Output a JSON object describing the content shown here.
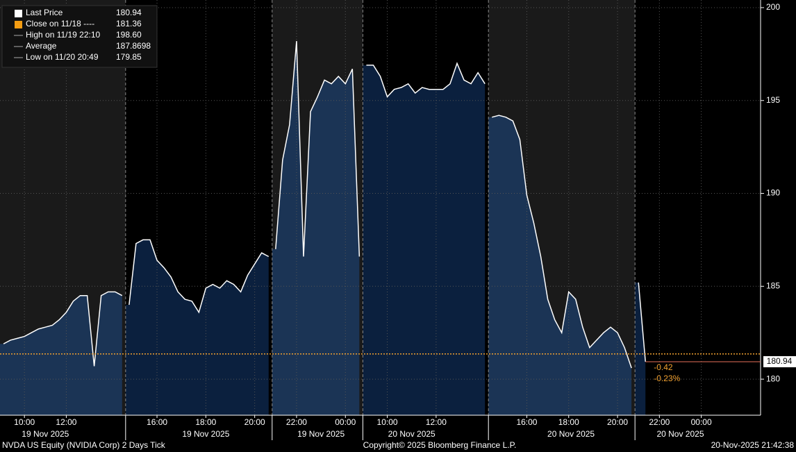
{
  "chart_data": {
    "type": "area",
    "ylim": [
      178.06,
      200.41
    ],
    "yticks": [
      180,
      185,
      190,
      195,
      200
    ],
    "grid": true,
    "line_color": "#ffffff",
    "shaded_area_color": "#1b3455",
    "area_color": "#0b203e",
    "shaded_background": "#1a1a1a",
    "background": "#000000",
    "close": {
      "value": 181.36,
      "color": "#f0a030"
    },
    "last_line_color": "#e8705a",
    "legend": [
      {
        "name": "Last Price",
        "value": 180.94,
        "color": "#ffffff"
      },
      {
        "name": "Close on 11/18 ----",
        "value": 181.36,
        "color": "#f39c12"
      },
      {
        "name": "High on 11/19 22:10",
        "value": {
          "value": 198.6,
          "label": "198.60"
        },
        "color": "#aaaaaa"
      },
      {
        "name": "Average",
        "value": 187.8698,
        "color": "#aaaaaa"
      },
      {
        "name": "Low on 11/20 20:49",
        "value": 179.85,
        "color": "#aaaaaa"
      }
    ],
    "annotations": [
      "-0.42",
      "-0.23%"
    ],
    "sessions": [
      {
        "label": "19 Nov 2025",
        "shaded": true,
        "categories": [
          null,
          null,
          null,
          "10:00",
          null,
          null,
          null,
          null,
          null,
          "12:00",
          null,
          null,
          null,
          null,
          null,
          null,
          null,
          null
        ],
        "values": [
          181.9,
          182.1,
          182.2,
          182.3,
          182.5,
          182.7,
          182.8,
          182.9,
          183.2,
          183.6,
          184.2,
          184.5,
          184.5,
          180.7,
          184.5,
          184.7,
          184.7,
          184.5
        ]
      },
      {
        "label": "19 Nov 2025",
        "shaded": false,
        "categories": [
          null,
          null,
          null,
          null,
          "16:00",
          null,
          null,
          null,
          null,
          null,
          null,
          "18:00",
          null,
          null,
          null,
          null,
          null,
          null,
          "20:00",
          null,
          null
        ],
        "values": [
          184.0,
          187.3,
          187.5,
          187.5,
          186.4,
          186.0,
          185.5,
          184.7,
          184.3,
          184.2,
          183.6,
          184.9,
          185.1,
          184.9,
          185.3,
          185.1,
          184.7,
          185.6,
          186.2,
          186.8,
          186.6
        ]
      },
      {
        "label": "19 Nov 2025",
        "shaded": true,
        "categories": [
          null,
          null,
          null,
          "22:00",
          null,
          null,
          null,
          null,
          null,
          null,
          "00:00",
          null,
          null
        ],
        "values": [
          187.0,
          191.8,
          193.7,
          198.2,
          186.6,
          194.4,
          195.2,
          196.1,
          195.9,
          196.3,
          195.9,
          196.7,
          186.6
        ]
      },
      {
        "label": "20 Nov 2025",
        "shaded": false,
        "categories": [
          null,
          null,
          null,
          "10:00",
          null,
          null,
          null,
          null,
          null,
          null,
          "12:00",
          null,
          null,
          null,
          null,
          null,
          null,
          null
        ],
        "values": [
          196.9,
          196.9,
          196.3,
          195.2,
          195.6,
          195.7,
          195.9,
          195.4,
          195.7,
          195.6,
          195.6,
          195.6,
          195.9,
          197.0,
          196.1,
          195.9,
          196.5,
          195.9
        ]
      },
      {
        "label": "20 Nov 2025",
        "shaded": true,
        "categories": [
          null,
          null,
          null,
          null,
          null,
          "16:00",
          null,
          null,
          null,
          null,
          null,
          "18:00",
          null,
          null,
          null,
          null,
          null,
          null,
          "20:00",
          null,
          null
        ],
        "values": [
          194.1,
          194.2,
          194.1,
          193.9,
          192.9,
          189.9,
          188.4,
          186.6,
          184.3,
          183.2,
          182.5,
          184.7,
          184.3,
          182.8,
          181.7,
          182.1,
          182.5,
          182.8,
          182.5,
          181.7,
          180.6
        ]
      },
      {
        "label": "20 Nov 2025",
        "shaded": false,
        "categories": [
          null,
          null,
          null,
          "22:00",
          null,
          null,
          null,
          null,
          null,
          "00:00",
          null,
          null,
          null,
          null,
          null,
          null,
          null,
          null
        ],
        "values": [
          185.2,
          180.94,
          null,
          null,
          null,
          null,
          null,
          null,
          null,
          null,
          null,
          null,
          null,
          null,
          null,
          null,
          null,
          null
        ]
      }
    ]
  },
  "footer": {
    "left": "NVDA US Equity (NVIDIA Corp) 2 Days Tick",
    "center": "Copyright© 2025 Bloomberg Finance L.P.",
    "right": "20-Nov-2025 21:42:38"
  }
}
